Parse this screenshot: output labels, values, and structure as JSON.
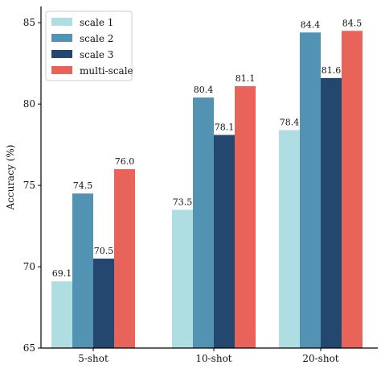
{
  "chart_data": {
    "type": "bar",
    "categories": [
      "5-shot",
      "10-shot",
      "20-shot"
    ],
    "series": [
      {
        "name": "scale 1",
        "values": [
          69.1,
          73.5,
          78.4
        ],
        "color": "#aedde2"
      },
      {
        "name": "scale 2",
        "values": [
          74.5,
          80.4,
          84.4
        ],
        "color": "#5292b2"
      },
      {
        "name": "scale 3",
        "values": [
          70.5,
          78.1,
          81.6
        ],
        "color": "#23476f"
      },
      {
        "name": "multi-scale",
        "values": [
          76.0,
          81.1,
          84.5
        ],
        "color": "#e8635a"
      }
    ],
    "value_labels": [
      [
        "69.1",
        "73.5",
        "78.4"
      ],
      [
        "74.5",
        "80.4",
        "84.4"
      ],
      [
        "70.5",
        "78.1",
        "81.6"
      ],
      [
        "76.0",
        "81.1",
        "84.5"
      ]
    ],
    "ylabel": "Accuracy (%)",
    "ylim": [
      65,
      86
    ],
    "yticks": [
      65,
      70,
      75,
      80,
      85
    ],
    "ytick_labels": [
      "65",
      "70",
      "75",
      "80",
      "85"
    ],
    "grid": false,
    "legend_position": "top-left"
  }
}
